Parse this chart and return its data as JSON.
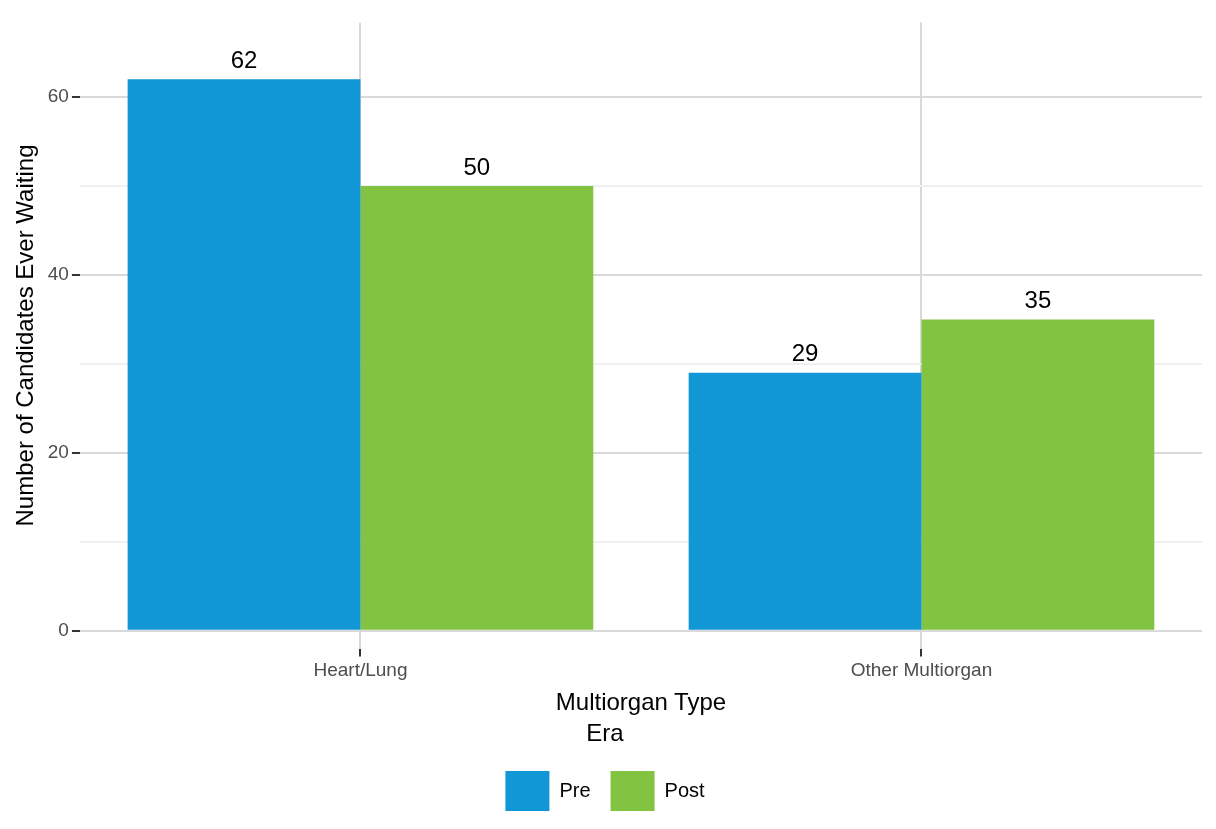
{
  "chart_data": {
    "type": "bar",
    "xlabel": "Multiorgan Type",
    "ylabel": "Number of Candidates Ever Waiting",
    "legend_title": "Era",
    "categories": [
      "Heart/Lung",
      "Other Multiorgan"
    ],
    "series": [
      {
        "name": "Pre",
        "color": "#1197d6",
        "values": [
          62,
          29
        ]
      },
      {
        "name": "Post",
        "color": "#82c341",
        "values": [
          50,
          35
        ]
      }
    ],
    "ylim": [
      -2,
      68.4
    ],
    "yticks": [
      0,
      {
        "value": 10,
        "label": null
      },
      20,
      {
        "value": 30,
        "label": null
      },
      40,
      {
        "value": 50,
        "label": null
      },
      60
    ],
    "grid": true,
    "legend": "bottom",
    "data_labels": true
  }
}
